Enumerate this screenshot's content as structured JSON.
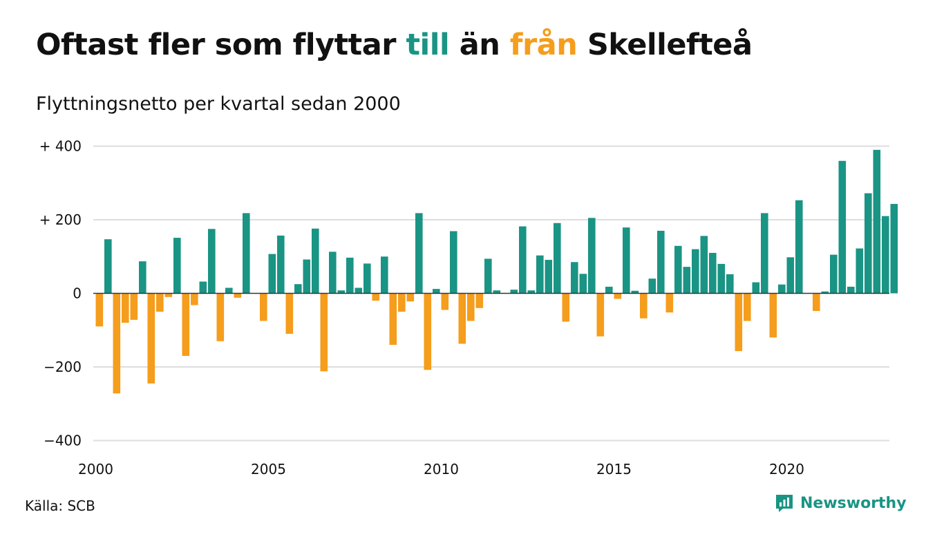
{
  "title": {
    "part1": "Oftast fler som flyttar ",
    "word_till": "till",
    "part2": " än ",
    "word_fran": "från",
    "part3": " Skellefteå"
  },
  "subtitle": "Flyttningsnetto per kvartal sedan 2000",
  "source": "Källa: SCB",
  "brand": {
    "name": "Newsworthy"
  },
  "colors": {
    "positive": "#1a9484",
    "negative": "#f59d1c",
    "grid": "#dddddd",
    "axis": "#333333",
    "text": "#111111"
  },
  "chart_data": {
    "type": "bar",
    "title": "Oftast fler som flyttar till än från Skellefteå",
    "subtitle": "Flyttningsnetto per kvartal sedan 2000",
    "x_start": 2000,
    "periods_per_year": 4,
    "ylim": [
      -400,
      400
    ],
    "yticks": [
      400,
      200,
      0,
      -200,
      -400
    ],
    "ytick_labels": [
      "+ 400",
      "+ 200",
      "0",
      "−200",
      "−400"
    ],
    "xticks": [
      2000,
      2005,
      2010,
      2015,
      2020
    ],
    "xtick_labels": [
      "2000",
      "2005",
      "2010",
      "2015",
      "2020"
    ],
    "grid": true,
    "values": [
      -90,
      147,
      -272,
      -80,
      -72,
      87,
      -245,
      -50,
      -10,
      151,
      -170,
      -32,
      32,
      175,
      -130,
      15,
      -12,
      218,
      0,
      -75,
      107,
      157,
      -110,
      25,
      92,
      176,
      -212,
      113,
      8,
      97,
      15,
      81,
      -20,
      100,
      -140,
      -50,
      -22,
      218,
      -208,
      12,
      -45,
      169,
      -137,
      -75,
      -40,
      94,
      8,
      0,
      10,
      182,
      8,
      103,
      91,
      191,
      -77,
      85,
      53,
      205,
      -117,
      18,
      -15,
      179,
      7,
      -68,
      40,
      170,
      -52,
      129,
      72,
      120,
      156,
      110,
      80,
      52,
      -157,
      -75,
      30,
      218,
      -120,
      24,
      98,
      253,
      0,
      -48,
      5,
      105,
      360,
      18,
      122,
      272,
      390,
      210,
      243
    ]
  }
}
